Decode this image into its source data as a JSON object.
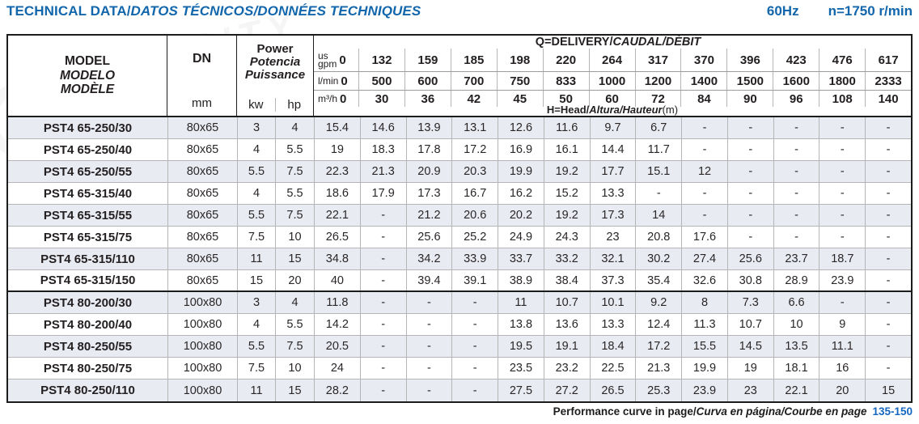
{
  "header": {
    "title_en": "TECHNICAL DATA/",
    "title_intl": "DATOS TÉCNICOS/DONNÉES TECHNIQUES",
    "frequency": "60Hz",
    "speed": "n=1750 r/min"
  },
  "table": {
    "model_labels": [
      "MODEL",
      "MODELO",
      "MODÈLE"
    ],
    "dn_label": "DN",
    "dn_unit": "mm",
    "power_labels": [
      "Power",
      "Potencia",
      "Puissance"
    ],
    "power_units": [
      "kw",
      "hp"
    ],
    "delivery_title_plain": "Q=DELIVERY/",
    "delivery_title_italic": "CAUDAL/DÉBIT",
    "head_label_plain": "H=Head/",
    "head_label_italic": "Altura/Hauteur",
    "head_label_unit": "(m)",
    "flow_rows": [
      {
        "unit_lines": [
          "us",
          "gpm"
        ],
        "zero": "0",
        "values": [
          "132",
          "159",
          "185",
          "198",
          "220",
          "264",
          "317",
          "370",
          "396",
          "423",
          "476",
          "617"
        ]
      },
      {
        "unit_lines": [
          "l/min"
        ],
        "zero": "0",
        "values": [
          "500",
          "600",
          "700",
          "750",
          "833",
          "1000",
          "1200",
          "1400",
          "1500",
          "1600",
          "1800",
          "2333"
        ]
      },
      {
        "unit_lines": [
          "m³/h"
        ],
        "zero": "0",
        "values": [
          "30",
          "36",
          "42",
          "45",
          "50",
          "60",
          "72",
          "84",
          "90",
          "96",
          "108",
          "140"
        ]
      }
    ],
    "row_groups": [
      [
        {
          "model": "PST4 65-250/30",
          "dn": "80x65",
          "kw": "3",
          "hp": "4",
          "head": [
            "15.4",
            "14.6",
            "13.9",
            "13.1",
            "12.6",
            "11.6",
            "9.7",
            "6.7",
            "-",
            "-",
            "-",
            "-",
            "-"
          ]
        },
        {
          "model": "PST4 65-250/40",
          "dn": "80x65",
          "kw": "4",
          "hp": "5.5",
          "head": [
            "19",
            "18.3",
            "17.8",
            "17.2",
            "16.9",
            "16.1",
            "14.4",
            "11.7",
            "-",
            "-",
            "-",
            "-",
            "-"
          ]
        },
        {
          "model": "PST4 65-250/55",
          "dn": "80x65",
          "kw": "5.5",
          "hp": "7.5",
          "head": [
            "22.3",
            "21.3",
            "20.9",
            "20.3",
            "19.9",
            "19.2",
            "17.7",
            "15.1",
            "12",
            "-",
            "-",
            "-",
            "-"
          ]
        },
        {
          "model": "PST4 65-315/40",
          "dn": "80x65",
          "kw": "4",
          "hp": "5.5",
          "head": [
            "18.6",
            "17.9",
            "17.3",
            "16.7",
            "16.2",
            "15.2",
            "13.3",
            "-",
            "-",
            "-",
            "-",
            "-",
            "-"
          ]
        },
        {
          "model": "PST4 65-315/55",
          "dn": "80x65",
          "kw": "5.5",
          "hp": "7.5",
          "head": [
            "22.1",
            "-",
            "21.2",
            "20.6",
            "20.2",
            "19.2",
            "17.3",
            "14",
            "-",
            "-",
            "-",
            "-",
            "-"
          ]
        },
        {
          "model": "PST4 65-315/75",
          "dn": "80x65",
          "kw": "7.5",
          "hp": "10",
          "head": [
            "26.5",
            "-",
            "25.6",
            "25.2",
            "24.9",
            "24.3",
            "23",
            "20.8",
            "17.6",
            "-",
            "-",
            "-",
            "-"
          ]
        },
        {
          "model": "PST4 65-315/110",
          "dn": "80x65",
          "kw": "11",
          "hp": "15",
          "head": [
            "34.8",
            "-",
            "34.2",
            "33.9",
            "33.7",
            "33.2",
            "32.1",
            "30.2",
            "27.4",
            "25.6",
            "23.7",
            "18.7",
            "-"
          ]
        },
        {
          "model": "PST4 65-315/150",
          "dn": "80x65",
          "kw": "15",
          "hp": "20",
          "head": [
            "40",
            "-",
            "39.4",
            "39.1",
            "38.9",
            "38.4",
            "37.3",
            "35.4",
            "32.6",
            "30.8",
            "28.9",
            "23.9",
            "-"
          ]
        }
      ],
      [
        {
          "model": "PST4 80-200/30",
          "dn": "100x80",
          "kw": "3",
          "hp": "4",
          "head": [
            "11.8",
            "-",
            "-",
            "-",
            "11",
            "10.7",
            "10.1",
            "9.2",
            "8",
            "7.3",
            "6.6",
            "-",
            "-"
          ]
        },
        {
          "model": "PST4 80-200/40",
          "dn": "100x80",
          "kw": "4",
          "hp": "5.5",
          "head": [
            "14.2",
            "-",
            "-",
            "-",
            "13.8",
            "13.6",
            "13.3",
            "12.4",
            "11.3",
            "10.7",
            "10",
            "9",
            "-"
          ]
        },
        {
          "model": "PST4 80-250/55",
          "dn": "100x80",
          "kw": "5.5",
          "hp": "7.5",
          "head": [
            "20.5",
            "-",
            "-",
            "-",
            "19.5",
            "19.1",
            "18.4",
            "17.2",
            "15.5",
            "14.5",
            "13.5",
            "11.1",
            "-"
          ]
        },
        {
          "model": "PST4 80-250/75",
          "dn": "100x80",
          "kw": "7.5",
          "hp": "10",
          "head": [
            "24",
            "-",
            "-",
            "-",
            "23.5",
            "23.2",
            "22.5",
            "21.3",
            "19.9",
            "19",
            "18.1",
            "16",
            "-"
          ]
        },
        {
          "model": "PST4 80-250/110",
          "dn": "100x80",
          "kw": "11",
          "hp": "15",
          "head": [
            "28.2",
            "-",
            "-",
            "-",
            "27.5",
            "27.2",
            "26.5",
            "25.3",
            "23.9",
            "23",
            "22.1",
            "20",
            "15"
          ]
        }
      ]
    ]
  },
  "footer": {
    "text_plain": "Performance curve in page/",
    "text_italic": "Curva en página/Courbe en page",
    "pages": "135-150"
  },
  "watermark": {
    "text": "PURITY"
  },
  "colors": {
    "accent_blue": "#1266ab",
    "row_shade": "#e8ebf2"
  }
}
